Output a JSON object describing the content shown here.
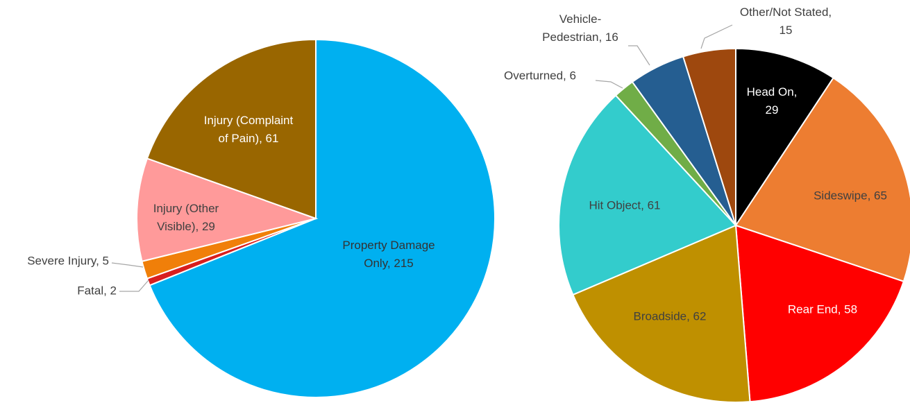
{
  "chart_data": [
    {
      "type": "pie",
      "values": [
        215,
        2,
        5,
        29,
        61
      ],
      "value_labels": [
        "Property Damage Only, 215",
        "Fatal, 2",
        "Severe Injury, 5",
        "Injury (Other Visible), 29",
        "Injury (Complaint of Pain), 61"
      ],
      "colors": [
        "#00b0f0",
        "#d81e1e",
        "#f07f09",
        "#ff9a9a",
        "#996600"
      ]
    },
    {
      "type": "pie",
      "values": [
        29,
        65,
        58,
        62,
        61,
        6,
        16,
        15
      ],
      "value_labels": [
        "Head On, 29",
        "Sideswipe, 65",
        "Rear End, 58",
        "Broadside, 62",
        "Hit Object, 61",
        "Overturned, 6",
        "Vehicle-Pedestrian, 16",
        "Other/Not Stated, 15"
      ],
      "colors": [
        "#000000",
        "#ed7d31",
        "#ff0000",
        "#bf9000",
        "#33cccc",
        "#70ad47",
        "#255e91",
        "#9e480e"
      ]
    }
  ]
}
